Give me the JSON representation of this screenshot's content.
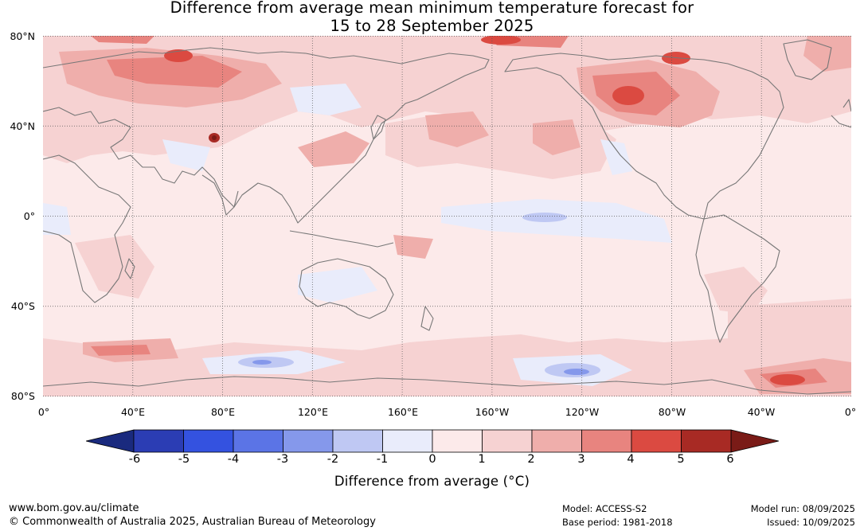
{
  "header": {
    "title_line1": "Difference from average mean minimum temperature forecast for",
    "title_line2": "15 to 28 September 2025"
  },
  "map": {
    "lat_labels": [
      "80°N",
      "40°N",
      "0°",
      "40°S",
      "80°S"
    ],
    "lon_labels": [
      "0°",
      "40°E",
      "80°E",
      "120°E",
      "160°E",
      "160°W",
      "120°W",
      "80°W",
      "40°W",
      "0°"
    ],
    "lat_range": [
      -80,
      80
    ],
    "lon_range": [
      0,
      360
    ],
    "gridlines": true,
    "colors": {
      "neg6": "#1a237e",
      "neg5": "#2b3db4",
      "neg4": "#3452e0",
      "neg3": "#5b74e6",
      "neg2": "#8598eb",
      "neg1": "#bfc8f3",
      "zero_neg": "#e9ecfb",
      "zero_pos": "#fceaea",
      "pos1": "#f6d2d2",
      "pos2": "#efaeab",
      "pos3": "#e8847f",
      "pos4": "#db4a41",
      "pos5": "#a82a24",
      "pos6": "#7a1b17",
      "coast": "#777777"
    }
  },
  "colorbar": {
    "ticks": [
      "-6",
      "-5",
      "-4",
      "-3",
      "-2",
      "-1",
      "0",
      "1",
      "2",
      "3",
      "4",
      "5",
      "6"
    ],
    "label": "Difference from average (°C)",
    "segments": [
      "#2b3db4",
      "#3452e0",
      "#5b74e6",
      "#8598eb",
      "#bfc8f3",
      "#e9ecfb",
      "#fceaea",
      "#f6d2d2",
      "#efaeab",
      "#e8847f",
      "#db4a41",
      "#a82a24"
    ],
    "under_color": "#1a2a7e",
    "over_color": "#7a1b17"
  },
  "footer": {
    "url": "www.bom.gov.au/climate",
    "copyright": "© Commonwealth of Australia 2025, Australian Bureau of Meteorology",
    "model": "Model: ACCESS-S2",
    "base_period": "Base period: 1981-2018",
    "model_run": "Model run: 08/09/2025",
    "issued": "Issued: 10/09/2025"
  }
}
